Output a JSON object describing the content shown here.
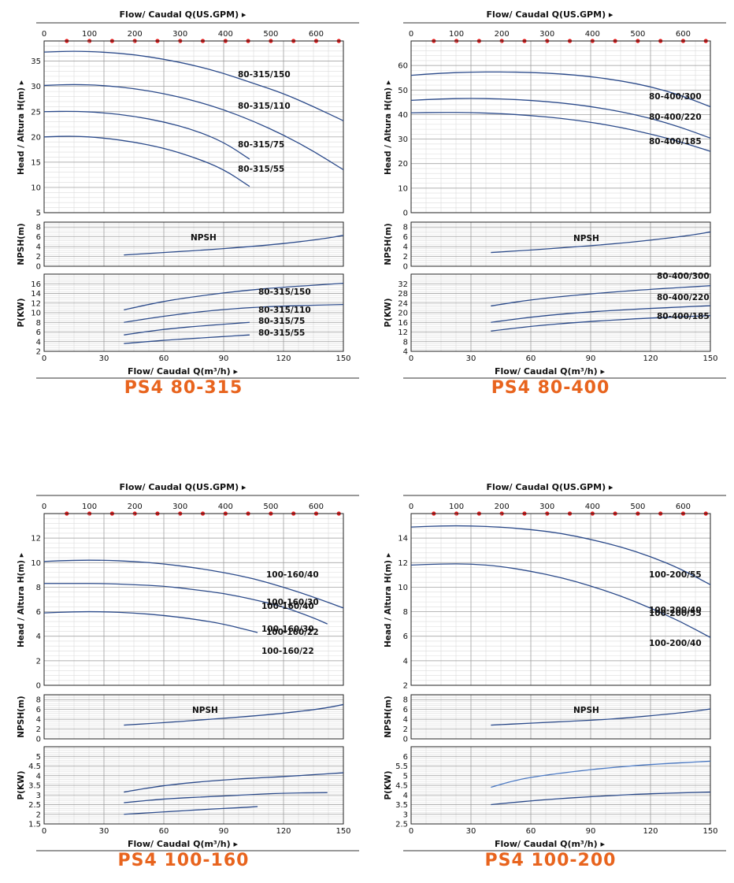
{
  "chart_data": [
    {
      "type": "line",
      "title": "PS4 80-315",
      "top_axis_label": "Flow/ Caudal Q(US.GPM)",
      "bottom_axis_label": "Flow/ Caudal Q(m³/h)",
      "x_ticks": [
        "0",
        "30",
        "60",
        "90",
        "120",
        "150"
      ],
      "gpm_ticks": [
        "0",
        "100",
        "200",
        "300",
        "400",
        "500",
        "600"
      ],
      "xlim": [
        0,
        150
      ],
      "gpm_max": 660,
      "grid": true,
      "head": {
        "ylabel": "Head / Altura H(m)",
        "ylim": [
          5,
          39
        ],
        "ticks": [
          "5",
          "10",
          "15",
          "20",
          "25",
          "30",
          "35"
        ],
        "series": [
          {
            "name": "80-315/150",
            "x": [
              0,
              15,
              30,
              45,
              60,
              75,
              90,
              105,
              120,
              135,
              150
            ],
            "y": [
              36.8,
              37.0,
              36.8,
              36.3,
              35.4,
              34.2,
              32.6,
              30.6,
              28.6,
              26.0,
              23.2
            ]
          },
          {
            "name": "80-315/110",
            "x": [
              0,
              15,
              30,
              45,
              60,
              75,
              90,
              105,
              120,
              135,
              150
            ],
            "y": [
              30.2,
              30.4,
              30.2,
              29.6,
              28.6,
              27.2,
              25.4,
              23.1,
              20.4,
              17.2,
              13.5
            ]
          },
          {
            "name": "80-315/75",
            "x": [
              0,
              15,
              30,
              45,
              60,
              75,
              90,
              103
            ],
            "y": [
              25.0,
              25.1,
              24.8,
              24.1,
              23.0,
              21.4,
              19.0,
              15.6
            ]
          },
          {
            "name": "80-315/55",
            "x": [
              0,
              15,
              30,
              45,
              60,
              75,
              90,
              103
            ],
            "y": [
              20.0,
              20.2,
              19.8,
              19.0,
              17.8,
              16.0,
              13.6,
              10.2
            ]
          }
        ]
      },
      "npsh": {
        "ylabel": "NPSH(m)",
        "ylim": [
          0,
          9
        ],
        "ticks": [
          "0",
          "2",
          "4",
          "6",
          "8"
        ],
        "series": [
          {
            "name": "NPSH",
            "x": [
              40,
              60,
              80,
              100,
              120,
              140,
              150
            ],
            "y": [
              2.3,
              2.8,
              3.3,
              3.9,
              4.6,
              5.6,
              6.3
            ]
          }
        ]
      },
      "power": {
        "ylabel": "P(KW)",
        "ylim": [
          2,
          18
        ],
        "ticks": [
          "2",
          "4",
          "6",
          "8",
          "10",
          "12",
          "14",
          "16"
        ],
        "series": [
          {
            "name": "80-315/150",
            "x": [
              40,
              60,
              80,
              100,
              120,
              150
            ],
            "y": [
              10.6,
              12.4,
              13.6,
              14.6,
              15.3,
              16.1
            ]
          },
          {
            "name": "80-315/110",
            "x": [
              40,
              60,
              80,
              100,
              120,
              150
            ],
            "y": [
              8.0,
              9.3,
              10.3,
              11.0,
              11.4,
              11.7
            ]
          },
          {
            "name": "80-315/75",
            "x": [
              40,
              60,
              80,
              103
            ],
            "y": [
              5.4,
              6.6,
              7.3,
              8.0
            ]
          },
          {
            "name": "80-315/55",
            "x": [
              40,
              60,
              80,
              103
            ],
            "y": [
              3.6,
              4.3,
              4.8,
              5.4
            ]
          }
        ]
      }
    },
    {
      "type": "line",
      "title": "PS4 80-400",
      "top_axis_label": "Flow/ Caudal Q(US.GPM)",
      "bottom_axis_label": "Flow/ Caudal Q(m³/h)",
      "x_ticks": [
        "0",
        "30",
        "60",
        "90",
        "120",
        "150"
      ],
      "gpm_ticks": [
        "0",
        "100",
        "200",
        "300",
        "400",
        "500",
        "600"
      ],
      "xlim": [
        0,
        150
      ],
      "gpm_max": 660,
      "grid": true,
      "head": {
        "ylabel": "Head / Altura H(m)",
        "ylim": [
          0,
          70
        ],
        "ticks": [
          "0",
          "10",
          "20",
          "30",
          "40",
          "50",
          "60"
        ],
        "series": [
          {
            "name": "80-400/300",
            "x": [
              0,
              15,
              30,
              45,
              60,
              75,
              90,
              105,
              120,
              135,
              150
            ],
            "y": [
              56.0,
              56.9,
              57.3,
              57.4,
              57.2,
              56.6,
              55.5,
              53.8,
              51.4,
              47.9,
              43.2
            ]
          },
          {
            "name": "80-400/220",
            "x": [
              0,
              15,
              30,
              45,
              60,
              75,
              90,
              105,
              120,
              135,
              150
            ],
            "y": [
              45.8,
              46.4,
              46.6,
              46.4,
              45.8,
              44.8,
              43.3,
              41.2,
              38.5,
              34.9,
              30.4
            ]
          },
          {
            "name": "80-400/185",
            "x": [
              0,
              15,
              30,
              45,
              60,
              75,
              90,
              105,
              120,
              135,
              150
            ],
            "y": [
              40.7,
              40.9,
              40.8,
              40.4,
              39.6,
              38.5,
              36.9,
              34.8,
              32.1,
              28.9,
              25.0
            ]
          }
        ]
      },
      "npsh": {
        "ylabel": "NPSH(m)",
        "ylim": [
          0,
          9
        ],
        "ticks": [
          "0",
          "2",
          "4",
          "6",
          "8"
        ],
        "series": [
          {
            "name": "NPSH",
            "x": [
              40,
              60,
              80,
              100,
              120,
              140,
              150
            ],
            "y": [
              2.8,
              3.3,
              3.9,
              4.5,
              5.3,
              6.3,
              7.0
            ]
          }
        ]
      },
      "power": {
        "ylabel": "P(KW)",
        "ylim": [
          4,
          36
        ],
        "ticks": [
          "4",
          "8",
          "12",
          "16",
          "20",
          "24",
          "28",
          "32"
        ],
        "series": [
          {
            "name": "80-400/300",
            "x": [
              40,
              60,
              80,
              100,
              120,
              150
            ],
            "y": [
              22.8,
              25.4,
              27.1,
              28.5,
              29.7,
              31.2
            ]
          },
          {
            "name": "80-400/220",
            "x": [
              40,
              60,
              80,
              100,
              120,
              150
            ],
            "y": [
              16.0,
              18.2,
              19.8,
              20.9,
              21.8,
              22.9
            ]
          },
          {
            "name": "80-400/185",
            "x": [
              40,
              60,
              80,
              100,
              120,
              150
            ],
            "y": [
              12.4,
              14.4,
              15.8,
              16.9,
              17.8,
              18.8
            ]
          }
        ]
      }
    },
    {
      "type": "line",
      "title": "PS4 100-160",
      "top_axis_label": "Flow/ Caudal Q(US.GPM)",
      "bottom_axis_label": "Flow/ Caudal Q(m³/h)",
      "x_ticks": [
        "0",
        "30",
        "60",
        "90",
        "120",
        "150"
      ],
      "gpm_ticks": [
        "0",
        "100",
        "200",
        "300",
        "400",
        "500",
        "600"
      ],
      "xlim": [
        0,
        150
      ],
      "gpm_max": 660,
      "grid": true,
      "head": {
        "ylabel": "Head / Altura H(m)",
        "ylim": [
          0,
          14
        ],
        "ticks": [
          "0",
          "2",
          "4",
          "6",
          "8",
          "10",
          "12"
        ],
        "series": [
          {
            "name": "100-160/40",
            "x": [
              0,
              15,
              30,
              45,
              60,
              75,
              90,
              105,
              120,
              135,
              150
            ],
            "y": [
              10.1,
              10.2,
              10.2,
              10.1,
              9.9,
              9.6,
              9.2,
              8.7,
              8.0,
              7.2,
              6.3
            ]
          },
          {
            "name": "100-160/30",
            "x": [
              0,
              15,
              30,
              45,
              60,
              75,
              90,
              105,
              120,
              135,
              142
            ],
            "y": [
              8.3,
              8.3,
              8.3,
              8.2,
              8.1,
              7.8,
              7.5,
              7.0,
              6.4,
              5.5,
              5.0
            ]
          },
          {
            "name": "100-160/22",
            "x": [
              0,
              15,
              30,
              45,
              60,
              75,
              90,
              107
            ],
            "y": [
              5.9,
              6.0,
              6.0,
              5.9,
              5.7,
              5.4,
              5.0,
              4.3
            ]
          }
        ]
      },
      "npsh": {
        "ylabel": "NPSH(m)",
        "ylim": [
          0,
          9
        ],
        "ticks": [
          "0",
          "2",
          "4",
          "6",
          "8"
        ],
        "series": [
          {
            "name": "NPSH",
            "x": [
              40,
              60,
              80,
              100,
              120,
              140,
              150
            ],
            "y": [
              2.8,
              3.3,
              3.9,
              4.5,
              5.2,
              6.2,
              7.0
            ]
          }
        ]
      },
      "power": {
        "ylabel": "P(KW)",
        "ylim": [
          1.5,
          5.5
        ],
        "ticks": [
          "1.5",
          "2",
          "2.5",
          "3",
          "3.5",
          "4",
          "4.5",
          "5"
        ],
        "series": [
          {
            "name": "100-160/40",
            "x": [
              40,
              60,
              80,
              100,
              120,
              150
            ],
            "y": [
              3.15,
              3.5,
              3.7,
              3.85,
              3.95,
              4.15
            ]
          },
          {
            "name": "100-160/30",
            "x": [
              40,
              60,
              80,
              100,
              120,
              142
            ],
            "y": [
              2.6,
              2.8,
              2.9,
              3.0,
              3.1,
              3.12
            ]
          },
          {
            "name": "100-160/22",
            "x": [
              40,
              60,
              80,
              100,
              107
            ],
            "y": [
              2.0,
              2.12,
              2.25,
              2.35,
              2.4
            ]
          }
        ]
      }
    },
    {
      "type": "line",
      "title": "PS4 100-200",
      "top_axis_label": "Flow/ Caudal Q(US.GPM)",
      "bottom_axis_label": "Flow/ Caudal Q(m³/h)",
      "x_ticks": [
        "0",
        "30",
        "60",
        "90",
        "120",
        "150"
      ],
      "gpm_ticks": [
        "0",
        "100",
        "200",
        "300",
        "400",
        "500",
        "600"
      ],
      "xlim": [
        0,
        150
      ],
      "gpm_max": 660,
      "grid": true,
      "head": {
        "ylabel": "Head / Altura H(m)",
        "ylim": [
          2,
          16
        ],
        "ticks": [
          "2",
          "4",
          "6",
          "8",
          "10",
          "12",
          "14"
        ],
        "series": [
          {
            "name": "100-200/55",
            "x": [
              0,
              15,
              30,
              45,
              60,
              75,
              90,
              105,
              120,
              135,
              150
            ],
            "y": [
              14.9,
              15.0,
              15.0,
              14.9,
              14.7,
              14.4,
              13.9,
              13.3,
              12.5,
              11.5,
              10.2
            ]
          },
          {
            "name": "100-200/40",
            "x": [
              0,
              15,
              30,
              45,
              60,
              75,
              90,
              105,
              120,
              135,
              150
            ],
            "y": [
              11.8,
              11.9,
              11.9,
              11.7,
              11.3,
              10.8,
              10.1,
              9.3,
              8.3,
              7.2,
              5.9
            ]
          }
        ]
      },
      "npsh": {
        "ylabel": "NPSH(m)",
        "ylim": [
          0,
          9
        ],
        "ticks": [
          "0",
          "2",
          "4",
          "6",
          "8"
        ],
        "series": [
          {
            "name": "NPSH",
            "x": [
              40,
              60,
              80,
              100,
              120,
              140,
              150
            ],
            "y": [
              2.8,
              3.2,
              3.6,
              4.0,
              4.7,
              5.5,
              6.1
            ]
          }
        ]
      },
      "power": {
        "ylabel": "P(KW)",
        "ylim": [
          2.5,
          6.5
        ],
        "ticks": [
          "2.5",
          "3",
          "3.5",
          "4",
          "4.5",
          "5",
          "5.5",
          "6"
        ],
        "series": [
          {
            "name": "100-200/55",
            "x": [
              40,
              50,
              60,
              80,
              100,
              120,
              150
            ],
            "y": [
              4.4,
              4.7,
              4.92,
              5.2,
              5.42,
              5.58,
              5.75
            ]
          },
          {
            "name": "100-200/40",
            "x": [
              40,
              60,
              80,
              100,
              120,
              150
            ],
            "y": [
              3.5,
              3.7,
              3.85,
              3.97,
              4.07,
              4.15
            ]
          }
        ]
      }
    }
  ],
  "colors": {
    "curve": "#2b4a8a",
    "curve_light": "#4a78c2",
    "marker": "#e21b1b",
    "title": "#e8641e",
    "grid": "#c8c8c8"
  }
}
